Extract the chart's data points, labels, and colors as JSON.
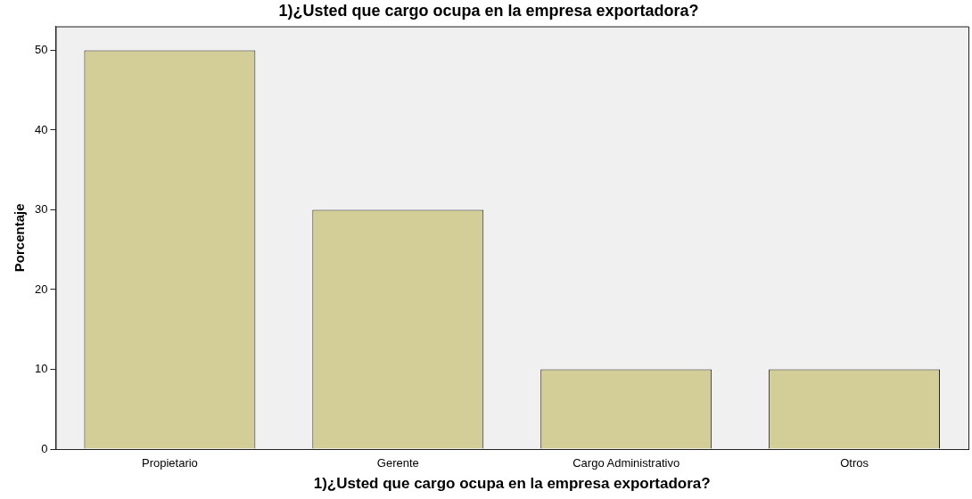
{
  "chart_data": {
    "type": "bar",
    "title": "1)¿Usted que cargo ocupa en la empresa exportadora?",
    "xlabel": "1)¿Usted que cargo ocupa en la empresa exportadora?",
    "ylabel": "Porcentaje",
    "categories": [
      "Propietario",
      "Gerente",
      "Cargo Administrativo",
      "Otros"
    ],
    "values": [
      50,
      30,
      10,
      10
    ],
    "color": "#d3ce97",
    "ylim": [
      0,
      53
    ],
    "yticks": [
      0,
      10,
      20,
      30,
      40,
      50
    ],
    "grid": false,
    "legend": false
  }
}
